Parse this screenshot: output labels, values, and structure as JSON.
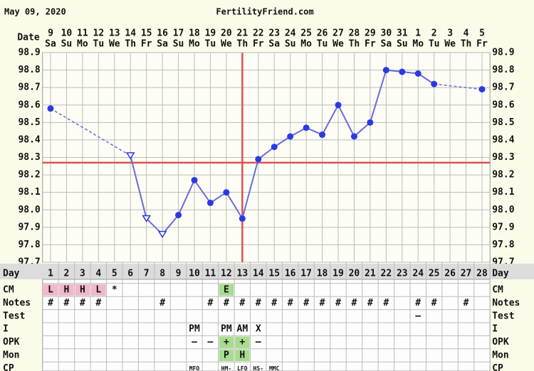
{
  "header": {
    "date": "May 09, 2020",
    "site": "FertilityFriend.com"
  },
  "chart_data": {
    "type": "line",
    "date_label": "Date",
    "categories": [
      "9",
      "10",
      "11",
      "12",
      "13",
      "14",
      "15",
      "16",
      "17",
      "18",
      "19",
      "20",
      "21",
      "22",
      "23",
      "24",
      "25",
      "26",
      "27",
      "28",
      "29",
      "30",
      "31",
      "1",
      "2",
      "3",
      "4",
      "5"
    ],
    "weekdays": [
      "Sa",
      "Su",
      "Mo",
      "Tu",
      "We",
      "Th",
      "Fr",
      "Sa",
      "Su",
      "Mo",
      "Tu",
      "We",
      "Th",
      "Fr",
      "Sa",
      "Su",
      "Mo",
      "Tu",
      "We",
      "Th",
      "Fr",
      "Sa",
      "Su",
      "Mo",
      "Tu",
      "We",
      "Th",
      "Fr"
    ],
    "values": [
      98.58,
      null,
      null,
      null,
      null,
      98.31,
      97.95,
      97.86,
      97.97,
      98.17,
      98.04,
      98.1,
      97.95,
      98.29,
      98.36,
      98.42,
      98.47,
      98.43,
      98.6,
      98.42,
      98.5,
      98.8,
      98.79,
      98.78,
      98.72,
      null,
      null,
      98.69
    ],
    "markers": [
      "circle",
      null,
      null,
      null,
      null,
      "triangle",
      "triangle",
      "triangle",
      "circle",
      "circle",
      "circle",
      "circle",
      "circle",
      "circle",
      "circle",
      "circle",
      "circle",
      "circle",
      "circle",
      "circle",
      "circle",
      "circle",
      "circle",
      "circle",
      "circle",
      null,
      null,
      "circle"
    ],
    "color": "#6a6ad8",
    "marker_color": "#2a3ae0",
    "ylim": [
      97.7,
      98.9
    ],
    "yticks": [
      97.7,
      97.8,
      97.9,
      {
        "value": 98.0,
        "label": "98.0"
      },
      98.1,
      98.2,
      98.3,
      98.4,
      98.5,
      98.6,
      98.7,
      98.8,
      98.9
    ],
    "grid": true,
    "coverline": 98.27,
    "ovulation_day": 13,
    "line_color_reference": "#d9534f",
    "cycle_day_label": "Day",
    "cycle_days": [
      1,
      2,
      3,
      4,
      5,
      6,
      7,
      8,
      9,
      10,
      11,
      12,
      13,
      14,
      15,
      16,
      17,
      18,
      19,
      20,
      21,
      22,
      23,
      24,
      25,
      26,
      27,
      28
    ],
    "rows": [
      {
        "label": "CM",
        "cells": [
          "L",
          "H",
          "H",
          "L",
          "*",
          null,
          null,
          null,
          null,
          null,
          null,
          "E",
          null,
          null,
          null,
          null,
          null,
          null,
          null,
          null,
          null,
          null,
          null,
          null,
          null,
          null,
          null,
          null
        ],
        "fills": [
          "#f0b8c8",
          "#f0b8c8",
          "#f0b8c8",
          "#f0b8c8",
          null,
          null,
          null,
          null,
          null,
          null,
          null,
          "#a8dc90",
          null,
          null,
          null,
          null,
          null,
          null,
          null,
          null,
          null,
          null,
          null,
          null,
          null,
          null,
          null,
          null
        ]
      },
      {
        "label": "Notes",
        "cells": [
          "#",
          "#",
          "#",
          "#",
          null,
          null,
          null,
          "#",
          null,
          null,
          "#",
          "#",
          "#",
          "#",
          "#",
          "#",
          "#",
          "#",
          "#",
          "#",
          "#",
          "#",
          null,
          "#",
          "#",
          null,
          "#",
          null
        ]
      },
      {
        "label": "Test",
        "cells": [
          null,
          null,
          null,
          null,
          null,
          null,
          null,
          null,
          null,
          null,
          null,
          null,
          null,
          null,
          null,
          null,
          null,
          null,
          null,
          null,
          null,
          null,
          null,
          "–",
          null,
          null,
          null,
          null
        ]
      },
      {
        "label": "I",
        "cells": [
          null,
          null,
          null,
          null,
          null,
          null,
          null,
          null,
          null,
          "PM",
          null,
          "PM",
          "AM",
          "X",
          null,
          null,
          null,
          null,
          null,
          null,
          null,
          null,
          null,
          null,
          null,
          null,
          null,
          null
        ]
      },
      {
        "label": "OPK",
        "cells": [
          null,
          null,
          null,
          null,
          null,
          null,
          null,
          null,
          null,
          "–",
          "–",
          "+",
          "+",
          "–",
          null,
          null,
          null,
          null,
          null,
          null,
          null,
          null,
          null,
          null,
          null,
          null,
          null,
          null
        ],
        "fills": [
          null,
          null,
          null,
          null,
          null,
          null,
          null,
          null,
          null,
          null,
          null,
          "#a8dc90",
          "#a8dc90",
          null,
          null,
          null,
          null,
          null,
          null,
          null,
          null,
          null,
          null,
          null,
          null,
          null,
          null,
          null
        ]
      },
      {
        "label": "Mon",
        "cells": [
          null,
          null,
          null,
          null,
          null,
          null,
          null,
          null,
          null,
          null,
          null,
          "P",
          "H",
          null,
          null,
          null,
          null,
          null,
          null,
          null,
          null,
          null,
          null,
          null,
          null,
          null,
          null,
          null
        ],
        "fills": [
          null,
          null,
          null,
          null,
          null,
          null,
          null,
          null,
          null,
          null,
          null,
          "#a8dc90",
          "#a8dc90",
          null,
          null,
          null,
          null,
          null,
          null,
          null,
          null,
          null,
          null,
          null,
          null,
          null,
          null,
          null
        ]
      },
      {
        "label": "CP",
        "cells": [
          null,
          null,
          null,
          null,
          null,
          null,
          null,
          null,
          null,
          "MFO",
          null,
          "HM-",
          "LFO",
          "HS-",
          "MMC",
          null,
          null,
          null,
          null,
          null,
          null,
          null,
          null,
          null,
          null,
          null,
          null,
          null
        ],
        "small": true
      }
    ]
  }
}
